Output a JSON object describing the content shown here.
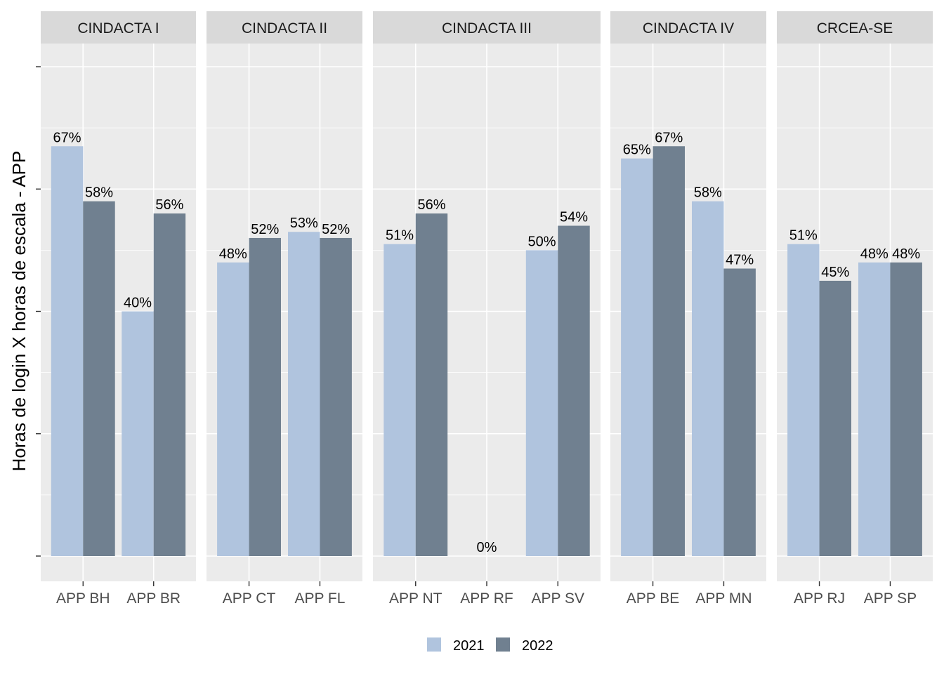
{
  "chart_data": {
    "type": "bar",
    "ylabel": "Horas de login X horas de escala - APP",
    "ylim": [
      0,
      0.9
    ],
    "value_format": "percent",
    "legend": {
      "position": "bottom"
    },
    "grid": true,
    "series": [
      {
        "name": "2021",
        "color": "#B0C4DE"
      },
      {
        "name": "2022",
        "color": "#708090"
      }
    ],
    "panels": [
      {
        "name": "CINDACTA I",
        "categories": [
          {
            "name": "APP BH",
            "values": [
              0.67,
              0.58
            ]
          },
          {
            "name": "APP BR",
            "values": [
              0.4,
              0.56
            ]
          }
        ]
      },
      {
        "name": "CINDACTA II",
        "categories": [
          {
            "name": "APP CT",
            "values": [
              0.48,
              0.52
            ]
          },
          {
            "name": "APP FL",
            "values": [
              0.53,
              0.52
            ]
          }
        ]
      },
      {
        "name": "CINDACTA III",
        "categories": [
          {
            "name": "APP NT",
            "values": [
              0.51,
              0.56
            ]
          },
          {
            "name": "APP RF",
            "values": [
              0
            ],
            "single_label": "0%"
          },
          {
            "name": "APP SV",
            "values": [
              0.5,
              0.54
            ]
          }
        ]
      },
      {
        "name": "CINDACTA IV",
        "categories": [
          {
            "name": "APP BE",
            "values": [
              0.65,
              0.67
            ]
          },
          {
            "name": "APP MN",
            "values": [
              0.58,
              0.47
            ]
          }
        ]
      },
      {
        "name": "CRCEA-SE",
        "categories": [
          {
            "name": "APP RJ",
            "values": [
              0.51,
              0.45
            ]
          },
          {
            "name": "APP SP",
            "values": [
              0.48,
              0.48
            ]
          }
        ]
      }
    ]
  }
}
